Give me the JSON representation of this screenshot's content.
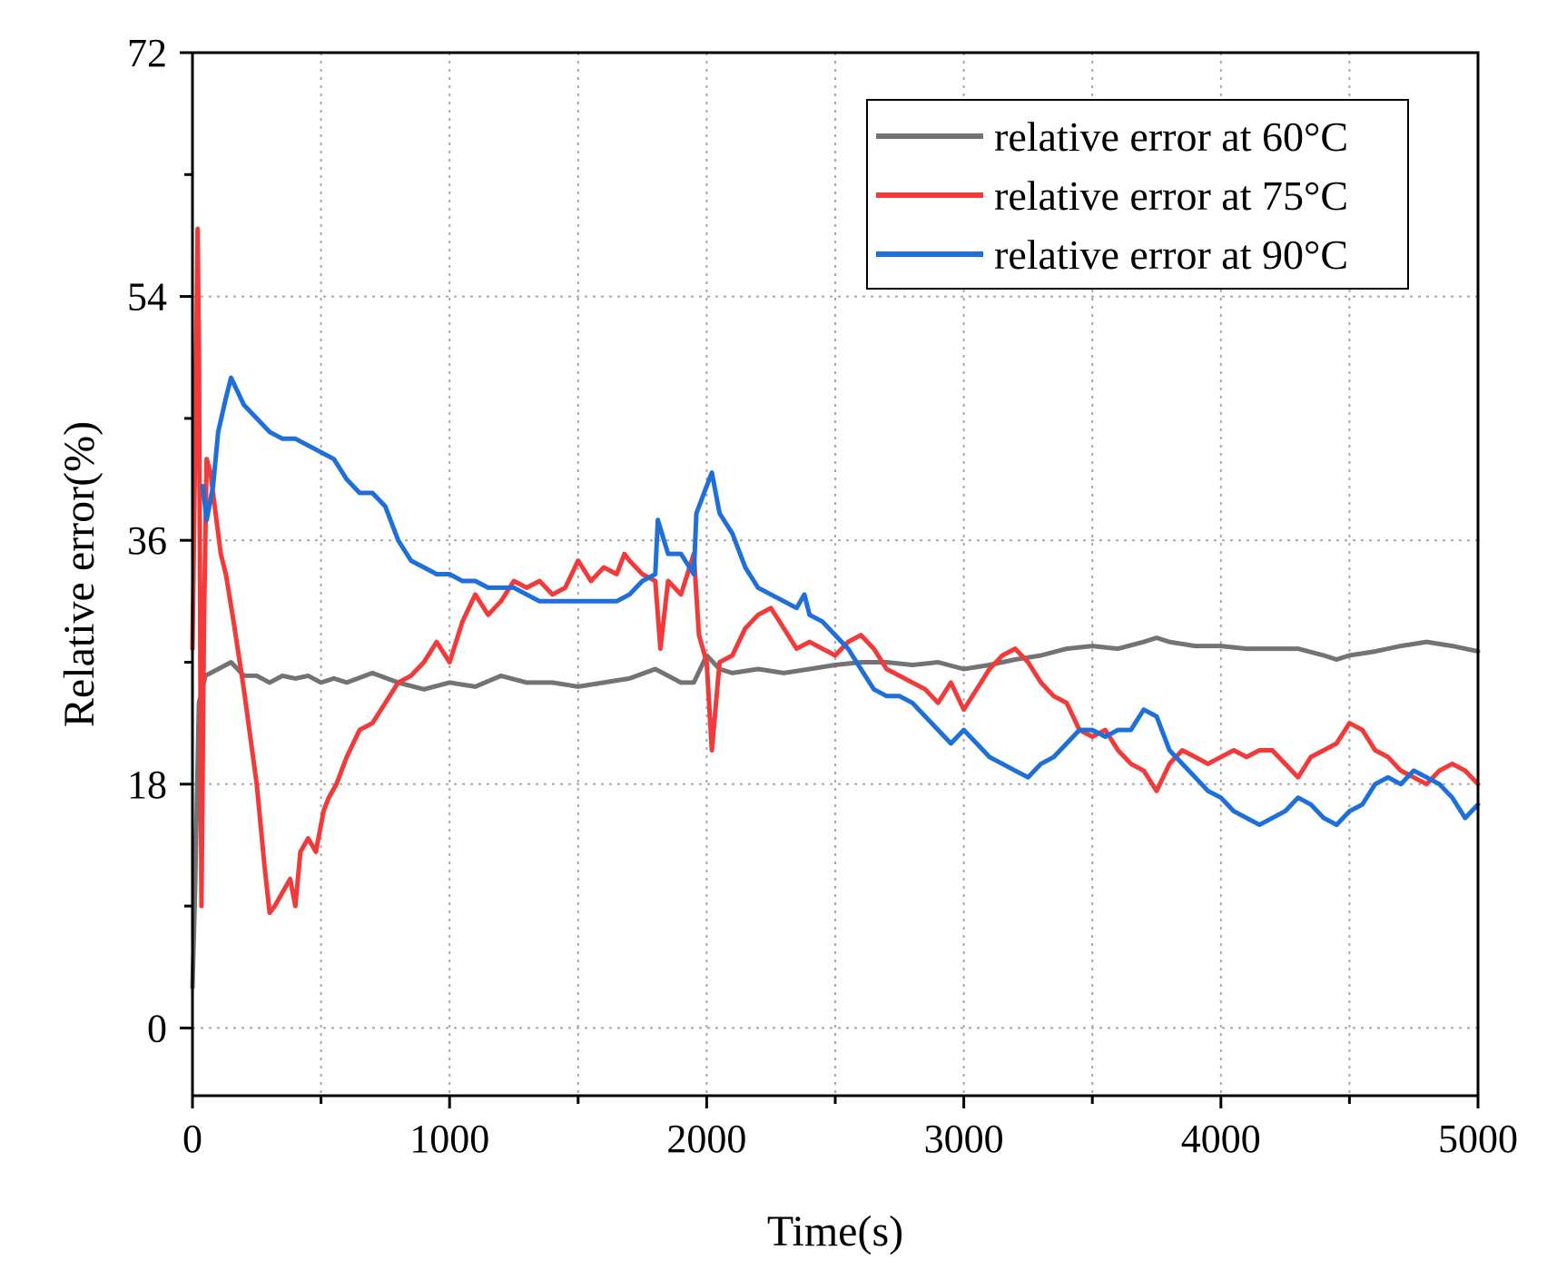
{
  "chart_data": {
    "type": "line",
    "title": "",
    "xlabel": "Time(s)",
    "ylabel": "Relative error(%)",
    "xlim": [
      0,
      5000
    ],
    "ylim": [
      -5,
      72
    ],
    "x_ticks": [
      0,
      1000,
      2000,
      3000,
      4000,
      5000
    ],
    "x_tick_labels": [
      "0",
      "1000",
      "2000",
      "3000",
      "4000",
      "5000"
    ],
    "y_ticks": [
      0,
      18,
      36,
      54,
      72
    ],
    "y_tick_labels": [
      "0",
      "18",
      "36",
      "54",
      "72"
    ],
    "grid": true,
    "legend_position": "top-right",
    "series": [
      {
        "name": "relative error at 60°C",
        "color": "#737373",
        "points": [
          [
            0,
            3
          ],
          [
            10,
            10
          ],
          [
            25,
            24
          ],
          [
            50,
            26
          ],
          [
            100,
            26.5
          ],
          [
            150,
            27
          ],
          [
            200,
            26
          ],
          [
            250,
            26
          ],
          [
            300,
            25.5
          ],
          [
            350,
            26
          ],
          [
            400,
            25.8
          ],
          [
            450,
            26
          ],
          [
            500,
            25.5
          ],
          [
            550,
            25.8
          ],
          [
            600,
            25.5
          ],
          [
            700,
            26.2
          ],
          [
            800,
            25.5
          ],
          [
            900,
            25
          ],
          [
            1000,
            25.5
          ],
          [
            1100,
            25.2
          ],
          [
            1200,
            26
          ],
          [
            1300,
            25.5
          ],
          [
            1400,
            25.5
          ],
          [
            1500,
            25.2
          ],
          [
            1600,
            25.5
          ],
          [
            1700,
            25.8
          ],
          [
            1800,
            26.5
          ],
          [
            1900,
            25.5
          ],
          [
            1950,
            25.5
          ],
          [
            2000,
            27.5
          ],
          [
            2050,
            26.5
          ],
          [
            2100,
            26.2
          ],
          [
            2200,
            26.5
          ],
          [
            2300,
            26.2
          ],
          [
            2400,
            26.5
          ],
          [
            2500,
            26.8
          ],
          [
            2600,
            27
          ],
          [
            2700,
            27
          ],
          [
            2800,
            26.8
          ],
          [
            2900,
            27
          ],
          [
            3000,
            26.5
          ],
          [
            3100,
            26.8
          ],
          [
            3200,
            27.2
          ],
          [
            3300,
            27.5
          ],
          [
            3400,
            28
          ],
          [
            3500,
            28.2
          ],
          [
            3600,
            28
          ],
          [
            3700,
            28.5
          ],
          [
            3750,
            28.8
          ],
          [
            3800,
            28.5
          ],
          [
            3900,
            28.2
          ],
          [
            4000,
            28.2
          ],
          [
            4100,
            28
          ],
          [
            4200,
            28
          ],
          [
            4300,
            28
          ],
          [
            4400,
            27.5
          ],
          [
            4450,
            27.2
          ],
          [
            4500,
            27.5
          ],
          [
            4600,
            27.8
          ],
          [
            4700,
            28.2
          ],
          [
            4800,
            28.5
          ],
          [
            4900,
            28.2
          ],
          [
            5000,
            27.8
          ]
        ]
      },
      {
        "name": "relative error at 75°C",
        "color": "#f23a3a",
        "points": [
          [
            0,
            28
          ],
          [
            10,
            42
          ],
          [
            20,
            59
          ],
          [
            25,
            50
          ],
          [
            35,
            9
          ],
          [
            45,
            30
          ],
          [
            55,
            42
          ],
          [
            70,
            41
          ],
          [
            90,
            38
          ],
          [
            110,
            35
          ],
          [
            130,
            33.5
          ],
          [
            160,
            30
          ],
          [
            200,
            25
          ],
          [
            250,
            18
          ],
          [
            280,
            12
          ],
          [
            300,
            8.5
          ],
          [
            320,
            9
          ],
          [
            350,
            10
          ],
          [
            380,
            11
          ],
          [
            400,
            9
          ],
          [
            420,
            13
          ],
          [
            450,
            14
          ],
          [
            480,
            13
          ],
          [
            510,
            16
          ],
          [
            530,
            17
          ],
          [
            560,
            18
          ],
          [
            600,
            20
          ],
          [
            650,
            22
          ],
          [
            700,
            22.5
          ],
          [
            750,
            24
          ],
          [
            800,
            25.5
          ],
          [
            850,
            26
          ],
          [
            900,
            27
          ],
          [
            950,
            28.5
          ],
          [
            1000,
            27
          ],
          [
            1050,
            30
          ],
          [
            1100,
            32
          ],
          [
            1150,
            30.5
          ],
          [
            1200,
            31.5
          ],
          [
            1250,
            33
          ],
          [
            1300,
            32.5
          ],
          [
            1350,
            33
          ],
          [
            1400,
            32
          ],
          [
            1450,
            32.5
          ],
          [
            1500,
            34.5
          ],
          [
            1550,
            33
          ],
          [
            1600,
            34
          ],
          [
            1650,
            33.5
          ],
          [
            1680,
            35
          ],
          [
            1700,
            34.5
          ],
          [
            1750,
            33.5
          ],
          [
            1800,
            33
          ],
          [
            1820,
            28
          ],
          [
            1850,
            33
          ],
          [
            1900,
            32
          ],
          [
            1950,
            35
          ],
          [
            1970,
            29
          ],
          [
            2000,
            27
          ],
          [
            2020,
            20.5
          ],
          [
            2050,
            27
          ],
          [
            2100,
            27.5
          ],
          [
            2150,
            29.5
          ],
          [
            2200,
            30.5
          ],
          [
            2250,
            31
          ],
          [
            2300,
            29.5
          ],
          [
            2350,
            28
          ],
          [
            2400,
            28.5
          ],
          [
            2450,
            28
          ],
          [
            2500,
            27.5
          ],
          [
            2550,
            28.5
          ],
          [
            2600,
            29
          ],
          [
            2650,
            28
          ],
          [
            2700,
            26.5
          ],
          [
            2750,
            26
          ],
          [
            2800,
            25.5
          ],
          [
            2850,
            25
          ],
          [
            2900,
            24
          ],
          [
            2950,
            25.5
          ],
          [
            3000,
            23.5
          ],
          [
            3050,
            25
          ],
          [
            3100,
            26.5
          ],
          [
            3150,
            27.5
          ],
          [
            3200,
            28
          ],
          [
            3250,
            27
          ],
          [
            3300,
            25.5
          ],
          [
            3350,
            24.5
          ],
          [
            3400,
            24
          ],
          [
            3450,
            22
          ],
          [
            3500,
            21.5
          ],
          [
            3550,
            22
          ],
          [
            3600,
            20.5
          ],
          [
            3650,
            19.5
          ],
          [
            3700,
            19
          ],
          [
            3750,
            17.5
          ],
          [
            3800,
            19.5
          ],
          [
            3850,
            20.5
          ],
          [
            3900,
            20
          ],
          [
            3950,
            19.5
          ],
          [
            4000,
            20
          ],
          [
            4050,
            20.5
          ],
          [
            4100,
            20
          ],
          [
            4150,
            20.5
          ],
          [
            4200,
            20.5
          ],
          [
            4250,
            19.5
          ],
          [
            4300,
            18.5
          ],
          [
            4350,
            20
          ],
          [
            4400,
            20.5
          ],
          [
            4450,
            21
          ],
          [
            4500,
            22.5
          ],
          [
            4550,
            22
          ],
          [
            4600,
            20.5
          ],
          [
            4650,
            20
          ],
          [
            4700,
            19
          ],
          [
            4750,
            18.5
          ],
          [
            4800,
            18
          ],
          [
            4850,
            19
          ],
          [
            4900,
            19.5
          ],
          [
            4950,
            19
          ],
          [
            5000,
            18
          ]
        ]
      },
      {
        "name": "relative error at 90°C",
        "color": "#1f6fdb",
        "points": [
          [
            40,
            40
          ],
          [
            55,
            37.5
          ],
          [
            80,
            40
          ],
          [
            100,
            44
          ],
          [
            130,
            46.5
          ],
          [
            150,
            48
          ],
          [
            200,
            46
          ],
          [
            250,
            45
          ],
          [
            300,
            44
          ],
          [
            350,
            43.5
          ],
          [
            400,
            43.5
          ],
          [
            450,
            43
          ],
          [
            500,
            42.5
          ],
          [
            550,
            42
          ],
          [
            600,
            40.5
          ],
          [
            650,
            39.5
          ],
          [
            700,
            39.5
          ],
          [
            750,
            38.5
          ],
          [
            800,
            36
          ],
          [
            850,
            34.5
          ],
          [
            900,
            34
          ],
          [
            950,
            33.5
          ],
          [
            1000,
            33.5
          ],
          [
            1050,
            33
          ],
          [
            1100,
            33
          ],
          [
            1150,
            32.5
          ],
          [
            1200,
            32.5
          ],
          [
            1250,
            32.5
          ],
          [
            1300,
            32
          ],
          [
            1350,
            31.5
          ],
          [
            1400,
            31.5
          ],
          [
            1450,
            31.5
          ],
          [
            1500,
            31.5
          ],
          [
            1550,
            31.5
          ],
          [
            1600,
            31.5
          ],
          [
            1650,
            31.5
          ],
          [
            1700,
            32
          ],
          [
            1750,
            33
          ],
          [
            1800,
            33.5
          ],
          [
            1810,
            37.5
          ],
          [
            1850,
            35
          ],
          [
            1900,
            35
          ],
          [
            1950,
            33.5
          ],
          [
            1960,
            38
          ],
          [
            2000,
            40
          ],
          [
            2020,
            41
          ],
          [
            2050,
            38
          ],
          [
            2100,
            36.5
          ],
          [
            2150,
            34
          ],
          [
            2200,
            32.5
          ],
          [
            2250,
            32
          ],
          [
            2300,
            31.5
          ],
          [
            2350,
            31
          ],
          [
            2380,
            32
          ],
          [
            2400,
            30.5
          ],
          [
            2450,
            30
          ],
          [
            2500,
            29
          ],
          [
            2550,
            28
          ],
          [
            2600,
            26.5
          ],
          [
            2650,
            25
          ],
          [
            2700,
            24.5
          ],
          [
            2750,
            24.5
          ],
          [
            2800,
            24
          ],
          [
            2850,
            23
          ],
          [
            2900,
            22
          ],
          [
            2950,
            21
          ],
          [
            3000,
            22
          ],
          [
            3050,
            21
          ],
          [
            3100,
            20
          ],
          [
            3150,
            19.5
          ],
          [
            3200,
            19
          ],
          [
            3250,
            18.5
          ],
          [
            3300,
            19.5
          ],
          [
            3350,
            20
          ],
          [
            3400,
            21
          ],
          [
            3450,
            22
          ],
          [
            3500,
            22
          ],
          [
            3550,
            21.5
          ],
          [
            3600,
            22
          ],
          [
            3650,
            22
          ],
          [
            3700,
            23.5
          ],
          [
            3750,
            23
          ],
          [
            3800,
            20.5
          ],
          [
            3850,
            19.5
          ],
          [
            3900,
            18.5
          ],
          [
            3950,
            17.5
          ],
          [
            4000,
            17
          ],
          [
            4050,
            16
          ],
          [
            4100,
            15.5
          ],
          [
            4150,
            15
          ],
          [
            4200,
            15.5
          ],
          [
            4250,
            16
          ],
          [
            4300,
            17
          ],
          [
            4350,
            16.5
          ],
          [
            4400,
            15.5
          ],
          [
            4450,
            15
          ],
          [
            4500,
            16
          ],
          [
            4550,
            16.5
          ],
          [
            4600,
            18
          ],
          [
            4650,
            18.5
          ],
          [
            4700,
            18
          ],
          [
            4750,
            19
          ],
          [
            4800,
            18.5
          ],
          [
            4850,
            18
          ],
          [
            4900,
            17
          ],
          [
            4950,
            15.5
          ],
          [
            5000,
            16.5
          ]
        ]
      }
    ]
  }
}
